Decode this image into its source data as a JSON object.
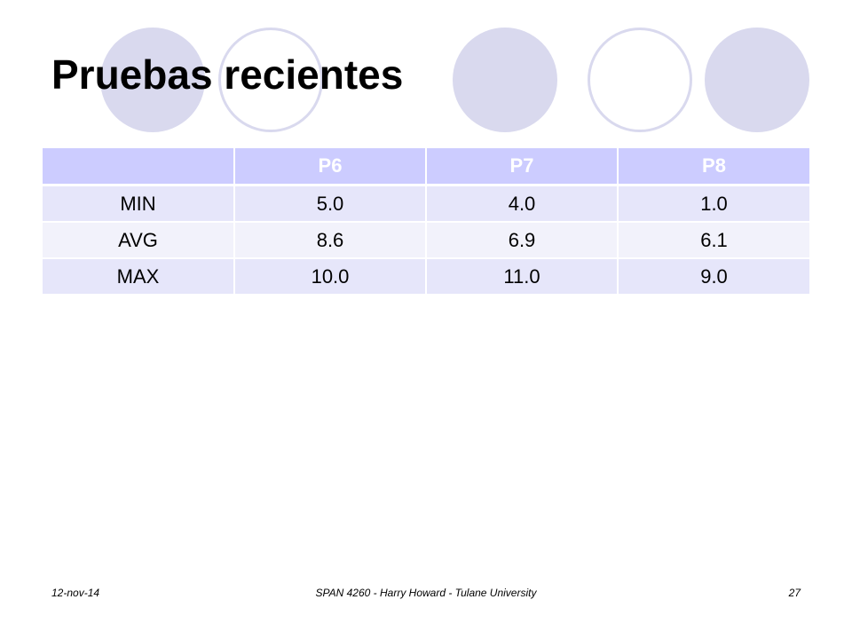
{
  "slide": {
    "title": "Pruebas recientes"
  },
  "colors": {
    "circle": "#d9d9ee",
    "header_bg": "#ccccff",
    "row_odd_bg": "#e6e6fa",
    "row_even_bg": "#f2f2fb"
  },
  "table": {
    "headers": [
      "",
      "P6",
      "P7",
      "P8"
    ],
    "rows": [
      {
        "label": "MIN",
        "values": [
          "5.0",
          "4.0",
          "1.0"
        ]
      },
      {
        "label": "AVG",
        "values": [
          "8.6",
          "6.9",
          "6.1"
        ]
      },
      {
        "label": "MAX",
        "values": [
          "10.0",
          "11.0",
          "9.0"
        ]
      }
    ]
  },
  "footer": {
    "date": "12-nov-14",
    "center": "SPAN 4260 - Harry Howard - Tulane University",
    "page": "27"
  }
}
